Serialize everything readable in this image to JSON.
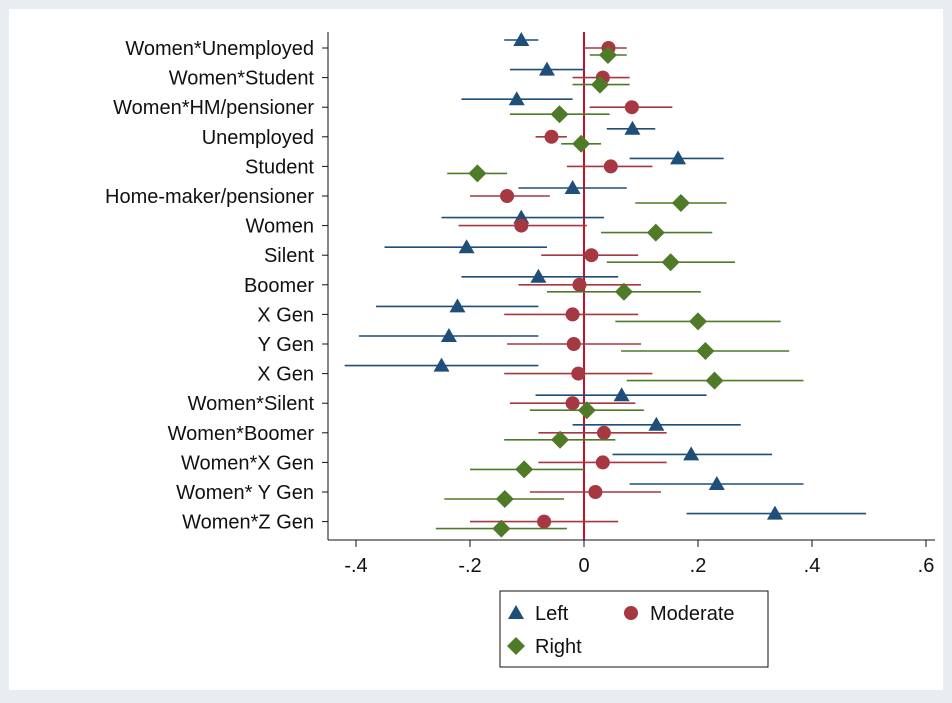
{
  "chart_data": {
    "type": "scatter",
    "subtype": "coefficient-plot-horizontal-with-ci",
    "x_ticks": [
      -0.4,
      -0.2,
      0,
      0.2,
      0.4,
      0.6
    ],
    "x_tick_labels": [
      "-.4",
      "-.2",
      "0",
      ".2",
      ".4",
      ".6"
    ],
    "xlim": [
      -0.42,
      0.61
    ],
    "reference_line_x": 0,
    "grid": false,
    "legend_position": "bottom",
    "categories": [
      "Women*Unemployed",
      "Women*Student",
      "Women*HM/pensioner",
      "Unemployed",
      "Student",
      "Home-maker/pensioner",
      "Women",
      "Silent",
      "Boomer",
      "X Gen",
      "Y Gen",
      "X Gen",
      "Women*Silent ",
      "Women*Boomer",
      "Women*X Gen",
      "Women* Y Gen",
      "Women*Z Gen"
    ],
    "series": [
      {
        "name": "Left",
        "marker": "triangle",
        "color": "#1f4e79",
        "values": [
          -0.11,
          -0.065,
          -0.118,
          0.085,
          0.165,
          -0.02,
          -0.11,
          -0.206,
          -0.08,
          -0.222,
          -0.237,
          -0.25,
          0.066,
          0.127,
          0.188,
          0.233,
          0.335
        ],
        "ci_low": [
          -0.14,
          -0.13,
          -0.215,
          0.04,
          0.08,
          -0.115,
          -0.25,
          -0.35,
          -0.215,
          -0.365,
          -0.395,
          -0.42,
          -0.085,
          -0.02,
          0.05,
          0.08,
          0.18
        ],
        "ci_high": [
          -0.08,
          0.0,
          -0.02,
          0.125,
          0.245,
          0.075,
          0.035,
          -0.065,
          0.06,
          -0.08,
          -0.08,
          -0.08,
          0.215,
          0.275,
          0.33,
          0.385,
          0.495
        ]
      },
      {
        "name": "Moderate",
        "marker": "circle",
        "color": "#a63842",
        "values": [
          0.043,
          0.033,
          0.084,
          -0.057,
          0.047,
          -0.135,
          -0.11,
          0.013,
          -0.008,
          -0.02,
          -0.018,
          -0.01,
          -0.02,
          0.035,
          0.033,
          0.02,
          -0.07
        ],
        "ci_low": [
          0.0,
          -0.02,
          0.01,
          -0.085,
          -0.03,
          -0.2,
          -0.22,
          -0.075,
          -0.115,
          -0.14,
          -0.135,
          -0.14,
          -0.13,
          -0.08,
          -0.08,
          -0.095,
          -0.2
        ],
        "ci_high": [
          0.075,
          0.08,
          0.155,
          -0.03,
          0.12,
          -0.06,
          0.005,
          0.095,
          0.1,
          0.095,
          0.1,
          0.12,
          0.09,
          0.145,
          0.145,
          0.135,
          0.06
        ]
      },
      {
        "name": "Right",
        "marker": "diamond",
        "color": "#4f7a28",
        "values": [
          0.042,
          0.028,
          -0.043,
          -0.005,
          -0.187,
          0.17,
          0.126,
          0.152,
          0.07,
          0.2,
          0.213,
          0.229,
          0.005,
          -0.042,
          -0.105,
          -0.139,
          -0.145
        ],
        "ci_low": [
          0.01,
          -0.02,
          -0.13,
          -0.04,
          -0.24,
          0.09,
          0.03,
          0.04,
          -0.065,
          0.055,
          0.065,
          0.075,
          -0.095,
          -0.14,
          -0.2,
          -0.245,
          -0.26
        ],
        "ci_high": [
          0.075,
          0.08,
          0.045,
          0.03,
          -0.135,
          0.25,
          0.225,
          0.265,
          0.205,
          0.345,
          0.36,
          0.385,
          0.105,
          0.055,
          0.0,
          -0.035,
          -0.03
        ]
      }
    ]
  }
}
